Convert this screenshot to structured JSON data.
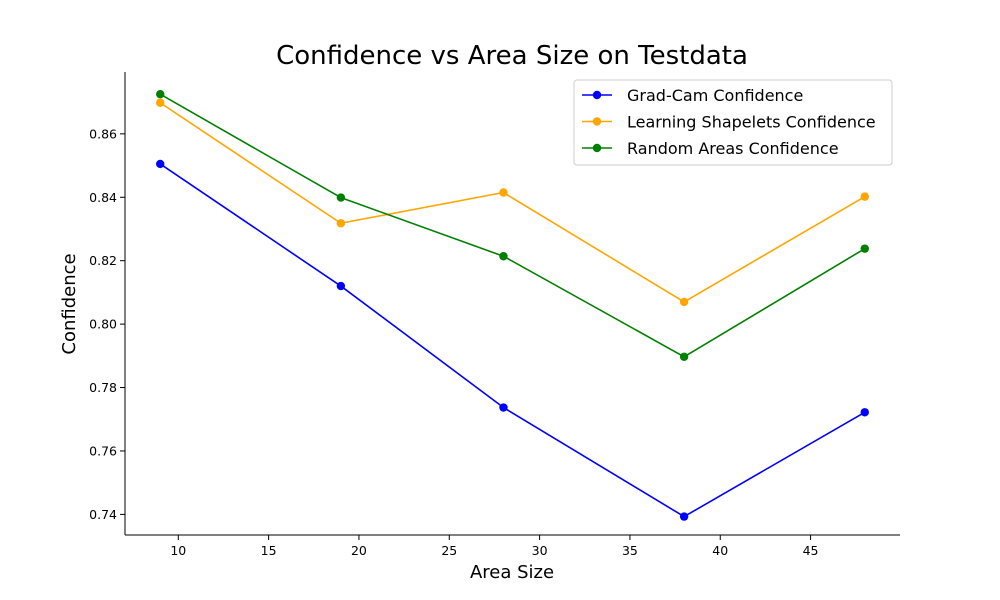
{
  "chart_data": {
    "type": "line",
    "title": "Confidence vs Area Size on Testdata",
    "xlabel": "Area Size",
    "ylabel": "Confidence",
    "x": [
      9,
      19,
      28,
      38,
      48
    ],
    "xlim": [
      7.05,
      49.95
    ],
    "ylim": [
      0.7335,
      0.8795
    ],
    "xticks": [
      10,
      15,
      20,
      25,
      30,
      35,
      40,
      45
    ],
    "yticks": [
      0.74,
      0.76,
      0.78,
      0.8,
      0.82,
      0.84,
      0.86
    ],
    "ytick_labels": [
      "0.74",
      "0.76",
      "0.78",
      "0.80",
      "0.82",
      "0.84",
      "0.86"
    ],
    "grid": false,
    "legend_position": "top-right",
    "series": [
      {
        "name": "Grad-Cam Confidence",
        "color": "#0000ff",
        "values": [
          0.8505,
          0.812,
          0.7737,
          0.7393,
          0.7722
        ]
      },
      {
        "name": "Learning Shapelets Confidence",
        "color": "#ffa500",
        "values": [
          0.8698,
          0.8318,
          0.8415,
          0.807,
          0.8402
        ]
      },
      {
        "name": "Random Areas Confidence",
        "color": "#008000",
        "values": [
          0.8725,
          0.8399,
          0.8214,
          0.7897,
          0.8238
        ]
      }
    ]
  }
}
